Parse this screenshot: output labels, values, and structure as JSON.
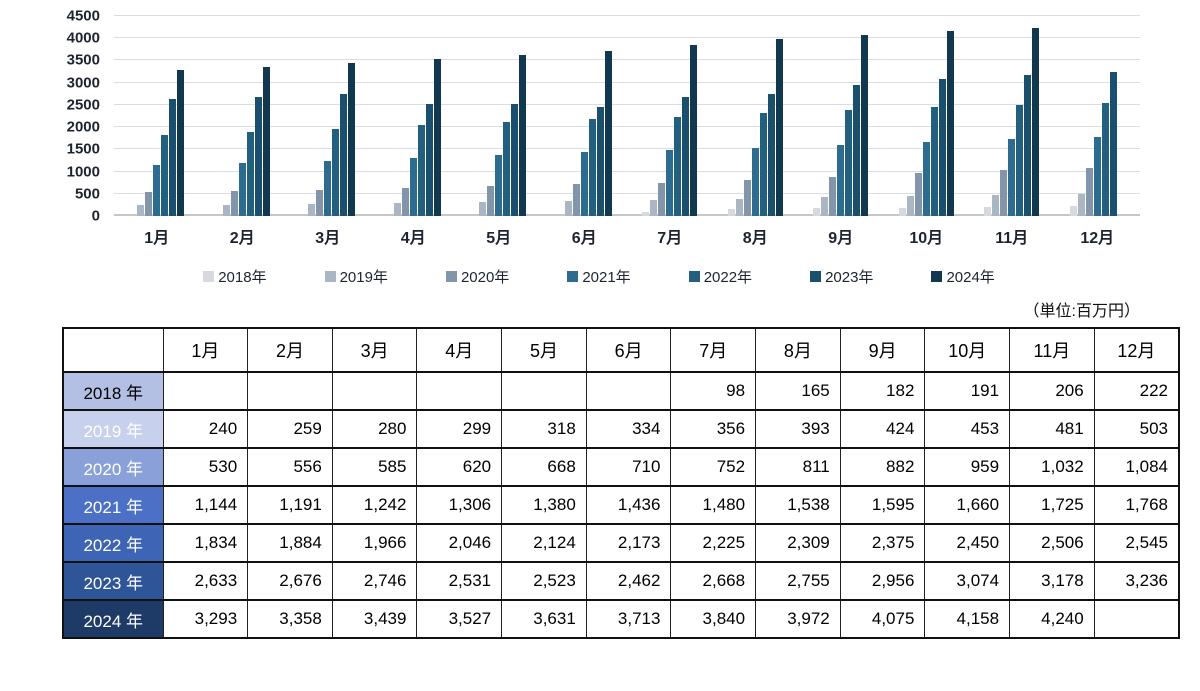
{
  "unit_note": "（単位:百万円）",
  "chart_data": {
    "type": "bar",
    "title": "",
    "xlabel": "",
    "ylabel": "",
    "ylim": [
      0,
      4500
    ],
    "y_tick_step": 500,
    "grid": true,
    "legend_position": "bottom",
    "categories": [
      "1月",
      "2月",
      "3月",
      "4月",
      "5月",
      "6月",
      "7月",
      "8月",
      "9月",
      "10月",
      "11月",
      "12月"
    ],
    "series": [
      {
        "name": "2018年",
        "color": "#d6dade",
        "values": [
          null,
          null,
          null,
          null,
          null,
          null,
          98,
          165,
          182,
          191,
          206,
          222
        ]
      },
      {
        "name": "2019年",
        "color": "#aab6c3",
        "values": [
          240,
          259,
          280,
          299,
          318,
          334,
          356,
          393,
          424,
          453,
          481,
          503
        ]
      },
      {
        "name": "2020年",
        "color": "#8295ab",
        "values": [
          530,
          556,
          585,
          620,
          668,
          710,
          752,
          811,
          882,
          959,
          1032,
          1084
        ]
      },
      {
        "name": "2021年",
        "color": "#2d6b8f",
        "values": [
          1144,
          1191,
          1242,
          1306,
          1380,
          1436,
          1480,
          1538,
          1595,
          1660,
          1725,
          1768
        ]
      },
      {
        "name": "2022年",
        "color": "#23607f",
        "values": [
          1834,
          1884,
          1966,
          2046,
          2124,
          2173,
          2225,
          2309,
          2375,
          2450,
          2506,
          2545
        ]
      },
      {
        "name": "2023年",
        "color": "#1a4f6d",
        "values": [
          2633,
          2676,
          2746,
          2531,
          2523,
          2462,
          2668,
          2755,
          2956,
          3074,
          3178,
          3236
        ]
      },
      {
        "name": "2024年",
        "color": "#12384f",
        "values": [
          3293,
          3358,
          3439,
          3527,
          3631,
          3713,
          3840,
          3972,
          4075,
          4158,
          4240,
          null
        ]
      }
    ]
  },
  "table": {
    "corner_label": "",
    "col_headers": [
      "1月",
      "2月",
      "3月",
      "4月",
      "5月",
      "6月",
      "7月",
      "8月",
      "9月",
      "10月",
      "11月",
      "12月"
    ],
    "rows": [
      {
        "label": "2018 年",
        "bg": "#b3bfe3",
        "fg": "#000000",
        "values": [
          null,
          null,
          null,
          null,
          null,
          null,
          98,
          165,
          182,
          191,
          206,
          222
        ]
      },
      {
        "label": "2019 年",
        "bg": "#c7d0ec",
        "fg": "#ffffff",
        "values": [
          240,
          259,
          280,
          299,
          318,
          334,
          356,
          393,
          424,
          453,
          481,
          503
        ]
      },
      {
        "label": "2020 年",
        "bg": "#8aa0d8",
        "fg": "#ffffff",
        "values": [
          530,
          556,
          585,
          620,
          668,
          710,
          752,
          811,
          882,
          959,
          1032,
          1084
        ]
      },
      {
        "label": "2021 年",
        "bg": "#4b70c5",
        "fg": "#ffffff",
        "values": [
          1144,
          1191,
          1242,
          1306,
          1380,
          1436,
          1480,
          1538,
          1595,
          1660,
          1725,
          1768
        ]
      },
      {
        "label": "2022 年",
        "bg": "#3d64b5",
        "fg": "#ffffff",
        "values": [
          1834,
          1884,
          1966,
          2046,
          2124,
          2173,
          2225,
          2309,
          2375,
          2450,
          2506,
          2545
        ]
      },
      {
        "label": "2023 年",
        "bg": "#2e5597",
        "fg": "#ffffff",
        "values": [
          2633,
          2676,
          2746,
          2531,
          2523,
          2462,
          2668,
          2755,
          2956,
          3074,
          3178,
          3236
        ]
      },
      {
        "label": "2024 年",
        "bg": "#1e3a66",
        "fg": "#ffffff",
        "values": [
          3293,
          3358,
          3439,
          3527,
          3631,
          3713,
          3840,
          3972,
          4075,
          4158,
          4240,
          null
        ]
      }
    ]
  }
}
